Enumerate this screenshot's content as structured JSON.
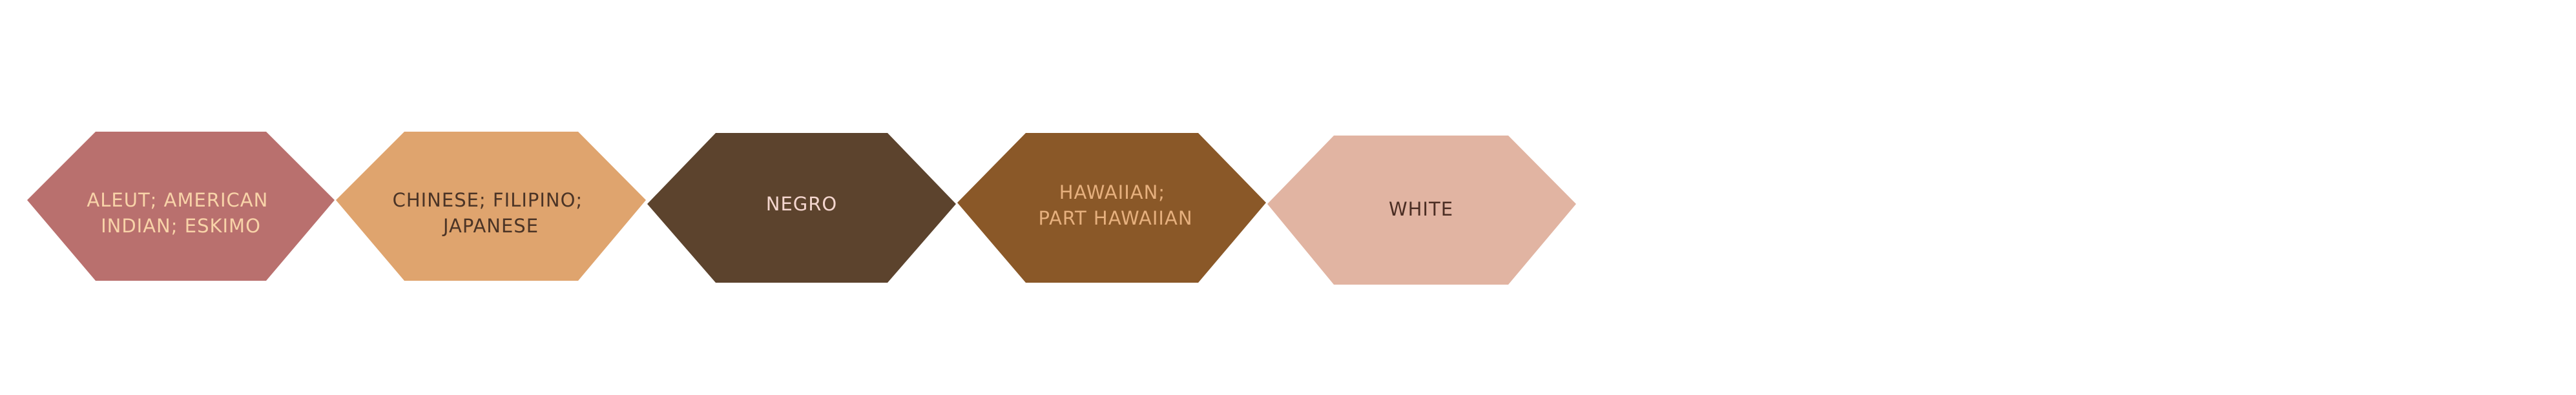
{
  "categories": [
    {
      "lines": [
        "ALEUT; AMERICAN",
        "INDIAN; ESKIMO"
      ],
      "fill": "#B9706E",
      "text_color": "#F8D3A8"
    },
    {
      "lines": [
        "CHINESE; FILIPINO;",
        "JAPANESE"
      ],
      "fill": "#DFA46E",
      "text_color": "#4B3426"
    },
    {
      "lines": [
        "NEGRO"
      ],
      "fill": "#5C432D",
      "text_color": "#F4D6CF"
    },
    {
      "lines": [
        "HAWAIIAN;",
        "PART HAWAIIAN"
      ],
      "fill": "#8A5828",
      "text_color": "#E6B07E"
    },
    {
      "lines": [
        "WHITE"
      ],
      "fill": "#E1B4A2",
      "text_color": "#4B2E24"
    }
  ]
}
